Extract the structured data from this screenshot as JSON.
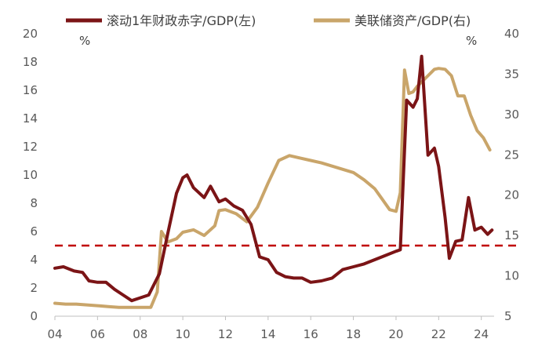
{
  "chart_data": {
    "type": "line",
    "legend_position": "top",
    "grid": false,
    "x_ticks": [
      "04",
      "06",
      "08",
      "10",
      "12",
      "14",
      "16",
      "18",
      "20",
      "22",
      "24"
    ],
    "xlim": [
      2004,
      2024.6
    ],
    "left_axis": {
      "unit": "%",
      "ylim": [
        0,
        20
      ],
      "ticks": [
        0,
        2,
        4,
        6,
        8,
        10,
        12,
        14,
        16,
        18,
        20
      ]
    },
    "right_axis": {
      "unit": "%",
      "ylim": [
        5,
        40
      ],
      "ticks": [
        5,
        10,
        15,
        20,
        25,
        30,
        35,
        40
      ]
    },
    "reference_line": {
      "y": 5,
      "axis": "left",
      "style": "dashed",
      "color": "#C00000"
    },
    "series": [
      {
        "name": "滚动1年财政赤字/GDP(左)",
        "axis": "left",
        "color": "#7B1416",
        "x": [
          2004.0,
          2004.4,
          2004.9,
          2005.3,
          2005.6,
          2006.0,
          2006.4,
          2006.8,
          2007.2,
          2007.6,
          2008.0,
          2008.4,
          2008.9,
          2009.3,
          2009.7,
          2010.0,
          2010.2,
          2010.5,
          2011.0,
          2011.3,
          2011.7,
          2012.0,
          2012.4,
          2012.8,
          2013.2,
          2013.6,
          2014.0,
          2014.4,
          2014.8,
          2015.2,
          2015.6,
          2016.0,
          2016.5,
          2017.0,
          2017.5,
          2018.0,
          2018.5,
          2019.0,
          2019.5,
          2020.0,
          2020.2,
          2020.5,
          2020.8,
          2021.0,
          2021.2,
          2021.5,
          2021.8,
          2022.0,
          2022.3,
          2022.5,
          2022.8,
          2023.1,
          2023.4,
          2023.7,
          2024.0,
          2024.3,
          2024.5
        ],
        "values": [
          3.4,
          3.5,
          3.2,
          3.1,
          2.5,
          2.4,
          2.4,
          1.9,
          1.5,
          1.1,
          1.3,
          1.5,
          3.0,
          5.9,
          8.7,
          9.8,
          10.0,
          9.1,
          8.4,
          9.2,
          8.1,
          8.3,
          7.8,
          7.5,
          6.5,
          4.2,
          4.0,
          3.1,
          2.8,
          2.7,
          2.7,
          2.4,
          2.5,
          2.7,
          3.3,
          3.5,
          3.7,
          4.0,
          4.3,
          4.6,
          4.7,
          15.3,
          14.8,
          15.4,
          18.4,
          11.4,
          11.9,
          10.6,
          7.0,
          4.1,
          5.3,
          5.4,
          8.4,
          6.1,
          6.3,
          5.8,
          6.1
        ]
      },
      {
        "name": "美联储资产/GDP(右)",
        "axis": "right",
        "color": "#C9A56A",
        "x": [
          2004.0,
          2004.5,
          2005.0,
          2005.5,
          2006.0,
          2006.5,
          2007.0,
          2007.5,
          2008.0,
          2008.5,
          2008.8,
          2009.0,
          2009.3,
          2009.7,
          2010.0,
          2010.5,
          2011.0,
          2011.5,
          2011.7,
          2012.0,
          2012.5,
          2013.0,
          2013.5,
          2014.0,
          2014.5,
          2015.0,
          2015.5,
          2016.0,
          2016.5,
          2017.0,
          2017.5,
          2018.0,
          2018.5,
          2019.0,
          2019.3,
          2019.7,
          2020.0,
          2020.2,
          2020.4,
          2020.6,
          2020.8,
          2021.0,
          2021.5,
          2021.8,
          2022.0,
          2022.3,
          2022.6,
          2022.9,
          2023.2,
          2023.5,
          2023.8,
          2024.1,
          2024.4
        ],
        "values": [
          6.6,
          6.5,
          6.5,
          6.4,
          6.3,
          6.2,
          6.1,
          6.1,
          6.1,
          6.1,
          8.0,
          15.5,
          14.2,
          14.6,
          15.4,
          15.7,
          15.0,
          16.2,
          18.1,
          18.2,
          17.7,
          16.7,
          18.5,
          21.5,
          24.3,
          24.9,
          24.6,
          24.3,
          24.0,
          23.6,
          23.2,
          22.8,
          21.9,
          20.8,
          19.7,
          18.2,
          18.0,
          20.3,
          35.5,
          32.6,
          32.8,
          33.5,
          34.8,
          35.6,
          35.7,
          35.6,
          34.8,
          32.3,
          32.3,
          29.9,
          28.0,
          27.1,
          25.6
        ]
      }
    ]
  }
}
